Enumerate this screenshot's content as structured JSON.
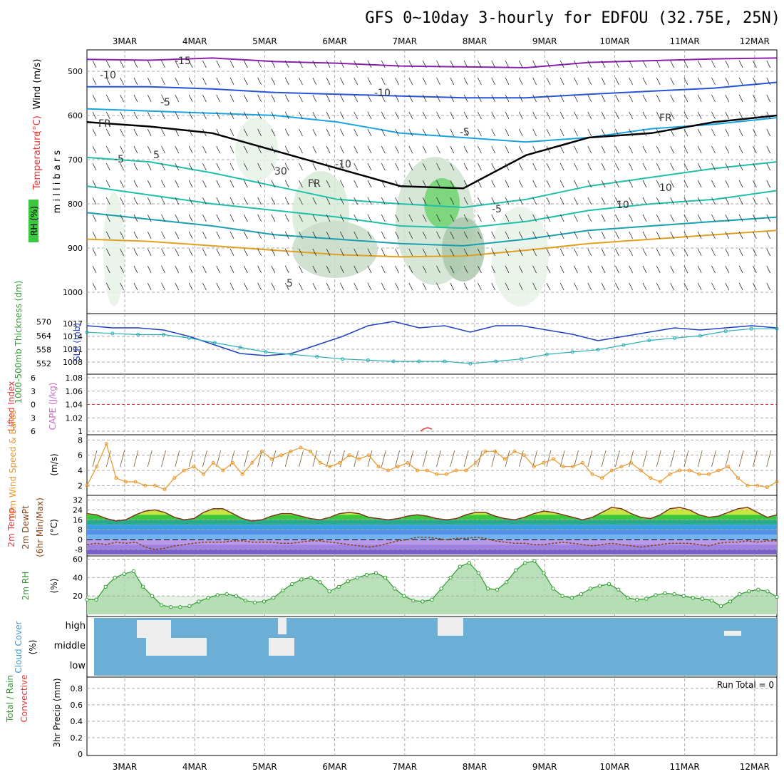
{
  "chart_data": {
    "type": "line",
    "title": "GFS 0~10day 3-hourly for EDFOU (32.75E, 25N)",
    "dates": [
      "3MAR",
      "4MAR",
      "5MAR",
      "6MAR",
      "7MAR",
      "8MAR",
      "9MAR",
      "10MAR",
      "11MAR",
      "12MAR"
    ],
    "colors": {
      "grid": "#aaaaaa",
      "dew": "#8b4513",
      "slp": "#1f3fbf",
      "thick": "#2aaeb5",
      "wind10": "#e8982a",
      "rh": "#2e9e2e",
      "cloud": "#6baed6",
      "cape": "#cc66cc",
      "li": "#ee3333",
      "frz": "#000000"
    },
    "upper": {
      "ylabel": "m i l l i b a r s",
      "left_labels": {
        "rh": "RH (%)",
        "temp": "Temperature",
        "unit": "(°C)",
        "wind": "Wind (m/s)"
      },
      "levels": [
        500,
        600,
        700,
        800,
        900,
        1000
      ],
      "contour_labels": [
        "-15",
        "-10",
        "-10",
        "-5",
        "-5",
        "FR",
        "FR",
        "FR",
        "-5",
        "-5",
        "5",
        "10",
        "5",
        "30",
        "-10",
        "10"
      ],
      "isotherms": [
        {
          "t": -15,
          "color": "#8b1fb0",
          "y": [
            473,
            475,
            470,
            478,
            482,
            488,
            490,
            492,
            480,
            476,
            472,
            470
          ]
        },
        {
          "t": -10,
          "color": "#2855d6",
          "y": [
            535,
            535,
            540,
            548,
            552,
            556,
            560,
            560,
            552,
            545,
            538,
            525
          ]
        },
        {
          "t": -5,
          "color": "#1aa3e0",
          "y": [
            585,
            590,
            595,
            600,
            615,
            640,
            650,
            660,
            650,
            630,
            620,
            605
          ]
        },
        {
          "t": 0,
          "color": "#000000",
          "y": [
            615,
            625,
            640,
            680,
            720,
            760,
            765,
            690,
            650,
            640,
            615,
            600
          ]
        },
        {
          "t": 5,
          "color": "#1fbfaa",
          "y": [
            695,
            705,
            730,
            760,
            790,
            800,
            808,
            790,
            760,
            740,
            720,
            705
          ]
        },
        {
          "t": 10,
          "color": "#1fbfaa",
          "y": [
            760,
            780,
            800,
            815,
            830,
            850,
            855,
            840,
            815,
            800,
            790,
            770
          ]
        },
        {
          "t": 15,
          "color": "#1a9fb0",
          "y": [
            820,
            835,
            850,
            870,
            880,
            890,
            895,
            880,
            860,
            850,
            840,
            830
          ]
        },
        {
          "t": 20,
          "color": "#e0a020",
          "y": [
            880,
            885,
            895,
            905,
            915,
            920,
            918,
            905,
            890,
            880,
            870,
            860
          ]
        }
      ]
    },
    "thickness_slp": {
      "y_left_label": "1000-500mb Thickness (dm)",
      "y_right_label": "SLP (mb)",
      "thickness_ticks": [
        552,
        558,
        564,
        570
      ],
      "slp_ticks": [
        1008,
        1011,
        1014,
        1017
      ],
      "slp": [
        1016.5,
        1016,
        1016,
        1015.5,
        1014,
        1012,
        1010,
        1009.5,
        1010,
        1012,
        1014,
        1016.5,
        1017.5,
        1016,
        1016.5,
        1015,
        1016.5,
        1016.5,
        1015.5,
        1014.5,
        1013,
        1014,
        1015,
        1016,
        1015.5,
        1016,
        1016.5,
        1016
      ],
      "thickness": [
        565.5,
        565,
        564.5,
        564.5,
        563,
        561,
        559,
        557,
        556,
        555,
        554,
        553.5,
        553,
        553,
        553,
        552,
        553,
        554,
        556,
        557,
        558,
        560,
        562,
        563,
        564,
        566,
        567,
        567
      ]
    },
    "cape_li": {
      "y_left_label": "Lifted Index",
      "y_right_label": "CAPE (J/kg)",
      "li_ticks": [
        -6,
        -3,
        0,
        3,
        6
      ],
      "cape_ticks": [
        1,
        1.02,
        1.04,
        1.06,
        1.08
      ],
      "li_line": 0
    },
    "wind10": {
      "label": "10m Wind Speed & Barbs",
      "unit": "(m/s)",
      "ticks": [
        2,
        4,
        6,
        8
      ],
      "speed": [
        2,
        4.5,
        7.5,
        3,
        2.5,
        2.5,
        2,
        2,
        1.5,
        3,
        4,
        4.5,
        3.5,
        5,
        4,
        5,
        3.5,
        5,
        6.5,
        5.5,
        6,
        6.5,
        7,
        6.5,
        5,
        4.5,
        5,
        6,
        5.5,
        6,
        4.5,
        4,
        4.5,
        5,
        4,
        4,
        3.5,
        3.5,
        4,
        4,
        5,
        6.5,
        6.5,
        5.5,
        6.5,
        6,
        4.5,
        5,
        5.5,
        4.5,
        4.5,
        5,
        3.5,
        3,
        4,
        4.5,
        5,
        4,
        3,
        2.5,
        3.5,
        4,
        4,
        3.5,
        3.5,
        4,
        4.5,
        3,
        2,
        2,
        1.8,
        2.5
      ]
    },
    "temp2m": {
      "label": "2m Temp",
      "dew_label": "2m DewPt",
      "minmax_label": "(6hr Min/Max)",
      "unit": "(°C)",
      "ticks": [
        -8,
        0,
        8,
        16,
        24,
        32
      ],
      "temp": [
        21,
        20,
        17,
        15,
        16,
        20,
        23,
        24,
        22,
        18,
        16,
        17,
        22,
        25,
        25,
        21,
        17,
        15,
        16,
        19,
        21,
        21,
        19,
        17,
        16,
        18,
        21,
        22,
        21,
        18,
        17,
        16,
        17,
        19,
        20,
        19,
        17,
        16,
        17,
        20,
        22,
        22,
        19,
        17,
        16,
        18,
        21,
        23,
        22,
        20,
        18,
        16,
        18,
        22,
        26,
        25,
        21,
        18,
        17,
        20,
        25,
        26,
        24,
        20,
        18,
        19,
        22,
        25,
        26,
        22,
        18,
        20
      ],
      "dew": [
        -4,
        -3,
        -4,
        -2,
        -3,
        -2,
        -6,
        -8,
        -7,
        -5,
        -4,
        -3,
        -2,
        -2,
        -2,
        -1,
        -1,
        -2,
        -2,
        -2,
        -3,
        -3,
        -2,
        -1,
        -1,
        -2,
        -3,
        -4,
        -5,
        -6,
        -5,
        -3,
        -1,
        0,
        2,
        2,
        1,
        0,
        1,
        1,
        2,
        1,
        -1,
        -2,
        -3,
        -3,
        -4,
        -4,
        -3,
        -2,
        -3,
        -4,
        -5,
        -4,
        -3,
        -4,
        -5,
        -6,
        -5,
        -4,
        -3,
        -3,
        -3,
        -4,
        -5,
        -3,
        -2,
        -2,
        -1,
        -2,
        -1,
        -1
      ]
    },
    "rh2m": {
      "label": "2m RH",
      "unit": "(%)",
      "ticks": [
        20,
        40,
        60
      ],
      "values": [
        16,
        16,
        30,
        40,
        44,
        47,
        30,
        20,
        10,
        8,
        8,
        9,
        14,
        18,
        21,
        22,
        20,
        15,
        13,
        14,
        18,
        26,
        33,
        38,
        40,
        35,
        25,
        30,
        36,
        40,
        43,
        45,
        40,
        28,
        20,
        15,
        14,
        16,
        28,
        40,
        52,
        56,
        45,
        28,
        27,
        35,
        48,
        56,
        58,
        45,
        28,
        20,
        18,
        22,
        28,
        31,
        33,
        27,
        18,
        16,
        17,
        21,
        23,
        22,
        20,
        18,
        17,
        15,
        9,
        14,
        22,
        25,
        27,
        25,
        19
      ]
    },
    "cloud": {
      "label": "Cloud Cover",
      "unit": "(%)",
      "rows": [
        "high",
        "middle",
        "low"
      ]
    },
    "precip": {
      "label_total": "Total / Rain",
      "label_conv": "Convective",
      "ylabel": "3hr Precip (mm)",
      "ticks": [
        "0",
        "0.2",
        "0.4",
        "0.6",
        "0.8"
      ],
      "run_total": "Run Total = 0",
      "values": []
    }
  }
}
